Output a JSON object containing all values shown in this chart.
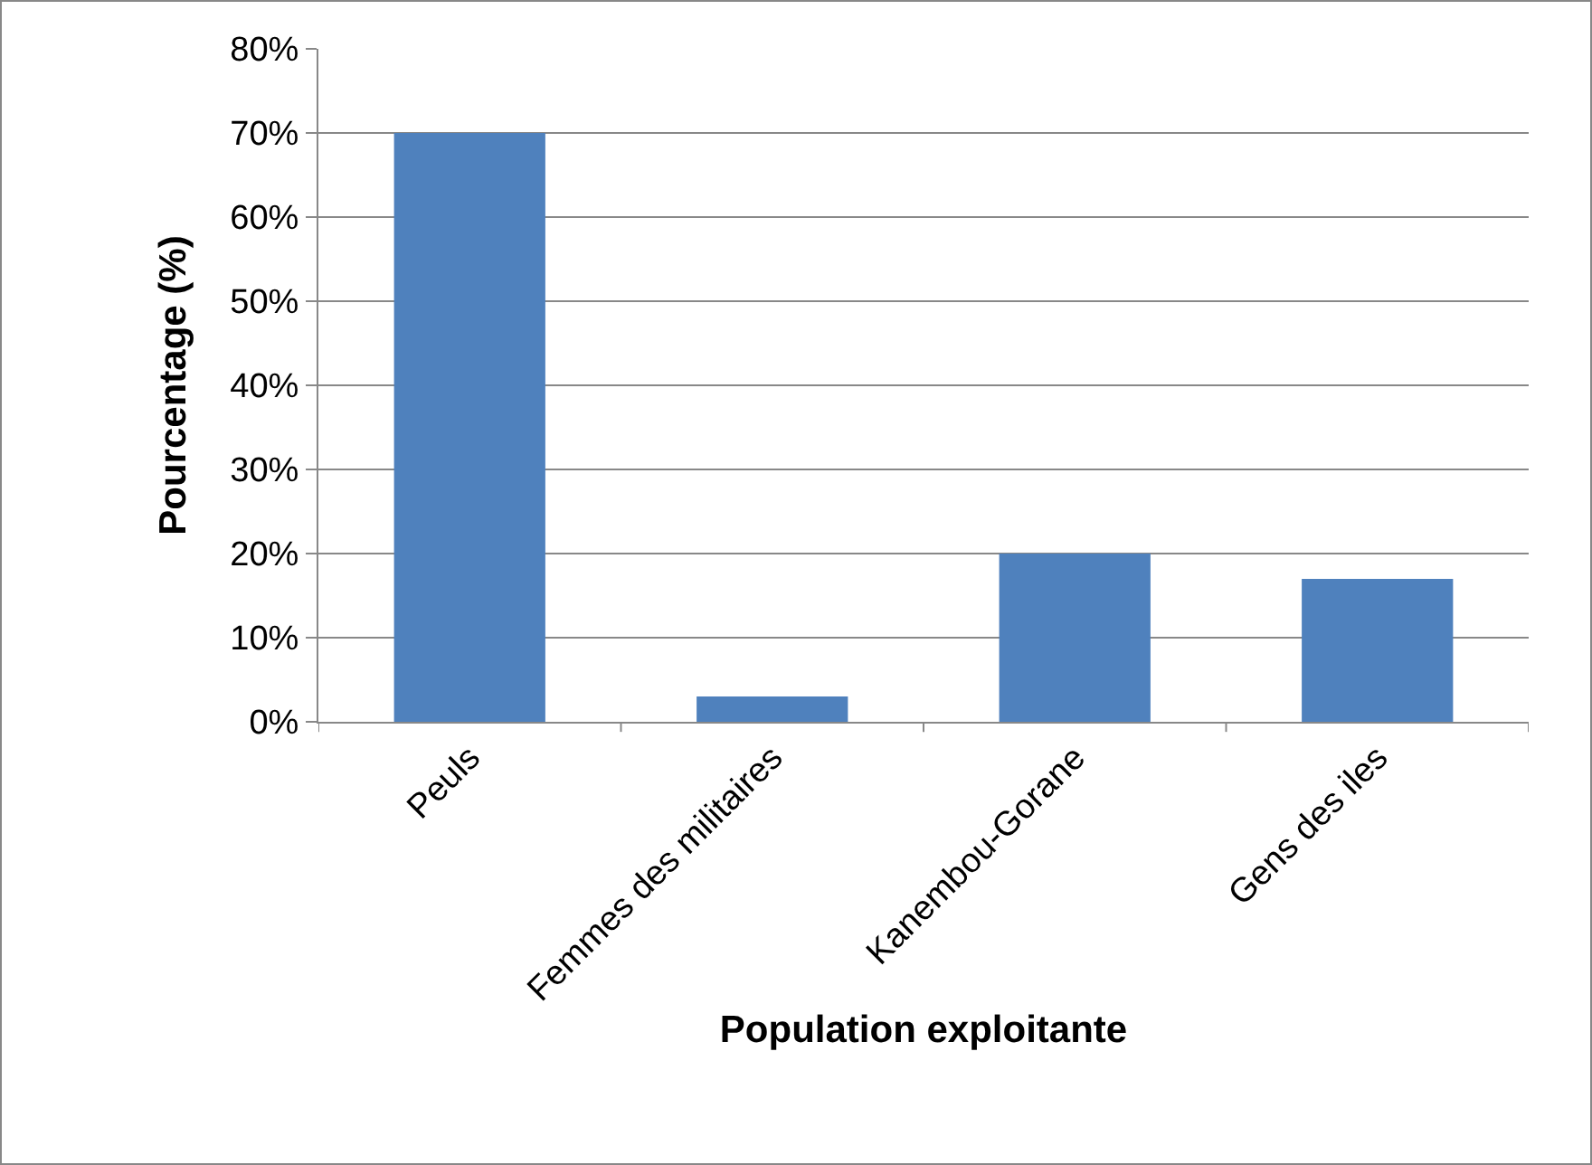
{
  "chart_data": {
    "type": "bar",
    "xlabel": "Population exploitante",
    "ylabel": "Pourcentage (%)",
    "categories": [
      "Peuls",
      "Femmes des militaires",
      "Kanembou-Gorane",
      "Gens des iles"
    ],
    "values": [
      70,
      3,
      20,
      17
    ],
    "color": "#4f81bd",
    "ylim": [
      0,
      80
    ],
    "yticks": [
      {
        "value": 0,
        "label": "0%"
      },
      {
        "value": 10,
        "label": "10%"
      },
      {
        "value": 20,
        "label": "20%"
      },
      {
        "value": 30,
        "label": "30%"
      },
      {
        "value": 40,
        "label": "40%"
      },
      {
        "value": 50,
        "label": "50%"
      },
      {
        "value": 60,
        "label": "60%"
      },
      {
        "value": 70,
        "label": "70%"
      },
      {
        "value": 80,
        "label": "80%"
      }
    ],
    "grid": "y"
  }
}
